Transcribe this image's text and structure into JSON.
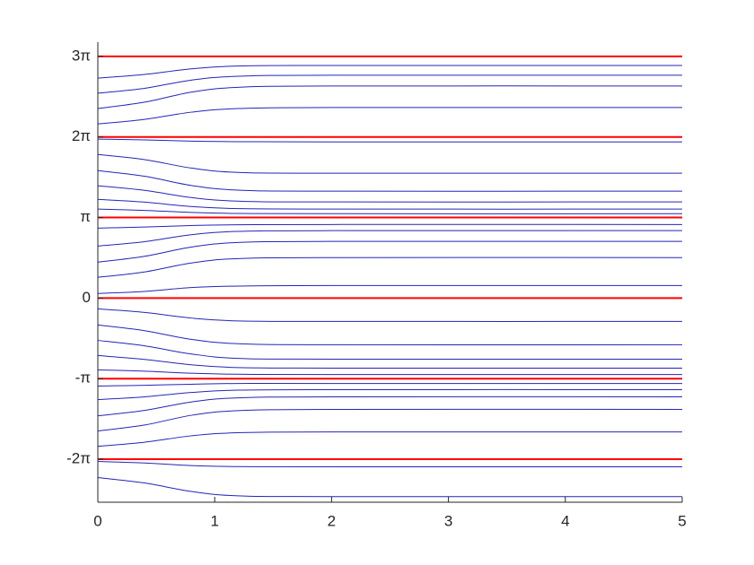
{
  "chart_data": {
    "type": "line",
    "x": [
      0,
      0.4,
      0.8,
      1.2,
      2,
      5
    ],
    "xlim": [
      0,
      5
    ],
    "xticks": [
      0,
      1,
      2,
      3,
      4,
      5
    ],
    "ylim": [
      -7.96,
      9.98
    ],
    "yticks": [
      {
        "value": -6.28318531,
        "label": "-2π"
      },
      {
        "value": -3.14159265,
        "label": "-π"
      },
      0,
      {
        "value": 3.14159265,
        "label": "π"
      },
      {
        "value": 6.28318531,
        "label": "2π"
      },
      {
        "value": 9.42477796,
        "label": "3π"
      }
    ],
    "series": [
      {
        "color": "#2424b8",
        "values": [
          8.58,
          8.72,
          8.94,
          9.05,
          9.07,
          9.07
        ]
      },
      {
        "color": "#2424b8",
        "values": [
          7.99,
          8.18,
          8.5,
          8.65,
          8.69,
          8.69
        ]
      },
      {
        "color": "#2424b8",
        "values": [
          7.39,
          7.64,
          8.03,
          8.22,
          8.27,
          8.27
        ]
      },
      {
        "color": "#2424b8",
        "values": [
          6.79,
          6.97,
          7.25,
          7.39,
          7.43,
          7.43
        ]
      },
      {
        "color": "#2424b8",
        "values": [
          6.2,
          6.17,
          6.12,
          6.1,
          6.09,
          6.09
        ]
      },
      {
        "color": "#2424b8",
        "values": [
          5.6,
          5.4,
          5.07,
          4.9,
          4.87,
          4.87
        ]
      },
      {
        "color": "#2424b8",
        "values": [
          4.97,
          4.75,
          4.39,
          4.21,
          4.17,
          4.17
        ]
      },
      {
        "color": "#2424b8",
        "values": [
          4.38,
          4.2,
          3.92,
          3.78,
          3.75,
          3.75
        ]
      },
      {
        "color": "#2424b8",
        "values": [
          3.85,
          3.74,
          3.57,
          3.49,
          3.47,
          3.47
        ]
      },
      {
        "color": "#2424b8",
        "values": [
          3.47,
          3.42,
          3.34,
          3.3,
          3.29,
          3.29
        ]
      },
      {
        "color": "#2424b8",
        "values": [
          2.73,
          2.77,
          2.83,
          2.86,
          2.87,
          2.87
        ]
      },
      {
        "color": "#2424b8",
        "values": [
          2.03,
          2.2,
          2.47,
          2.6,
          2.63,
          2.63
        ]
      },
      {
        "color": "#2424b8",
        "values": [
          1.4,
          1.63,
          1.99,
          2.17,
          2.21,
          2.21
        ]
      },
      {
        "color": "#2424b8",
        "values": [
          0.81,
          1.02,
          1.37,
          1.54,
          1.58,
          1.58
        ]
      },
      {
        "color": "#2424b8",
        "values": [
          0.18,
          0.26,
          0.41,
          0.47,
          0.49,
          0.49
        ]
      },
      {
        "color": "#2424b8",
        "values": [
          -0.42,
          -0.56,
          -0.78,
          -0.89,
          -0.91,
          -0.91
        ]
      },
      {
        "color": "#2424b8",
        "values": [
          -1.05,
          -1.27,
          -1.61,
          -1.78,
          -1.82,
          -1.82
        ]
      },
      {
        "color": "#2424b8",
        "values": [
          -1.65,
          -1.86,
          -2.18,
          -2.35,
          -2.38,
          -2.38
        ]
      },
      {
        "color": "#2424b8",
        "values": [
          -2.24,
          -2.39,
          -2.6,
          -2.71,
          -2.73,
          -2.73
        ]
      },
      {
        "color": "#2424b8",
        "values": [
          -2.8,
          -2.85,
          -2.93,
          -2.97,
          -2.98,
          -2.98
        ]
      },
      {
        "color": "#2424b8",
        "values": [
          -3.43,
          -3.4,
          -3.36,
          -3.33,
          -3.33,
          -3.33
        ]
      },
      {
        "color": "#2424b8",
        "values": [
          -3.96,
          -3.85,
          -3.68,
          -3.59,
          -3.57,
          -3.57
        ]
      },
      {
        "color": "#2424b8",
        "values": [
          -4.59,
          -4.38,
          -4.05,
          -3.89,
          -3.85,
          -3.85
        ]
      },
      {
        "color": "#2424b8",
        "values": [
          -5.18,
          -4.95,
          -4.57,
          -4.39,
          -4.34,
          -4.34
        ]
      },
      {
        "color": "#2424b8",
        "values": [
          -5.78,
          -5.62,
          -5.37,
          -5.25,
          -5.22,
          -5.22
        ]
      },
      {
        "color": "#2424b8",
        "values": [
          -6.37,
          -6.43,
          -6.53,
          -6.57,
          -6.58,
          -6.58
        ]
      },
      {
        "color": "#2424b8",
        "values": [
          -7.0,
          -7.21,
          -7.54,
          -7.71,
          -7.74,
          -7.74
        ]
      },
      {
        "color": "#ff0000",
        "values": [
          9.42477796,
          9.42477796,
          9.42477796,
          9.42477796,
          9.42477796,
          9.42477796
        ]
      },
      {
        "color": "#ff0000",
        "values": [
          6.28318531,
          6.28318531,
          6.28318531,
          6.28318531,
          6.28318531,
          6.28318531
        ]
      },
      {
        "color": "#ff0000",
        "values": [
          3.14159265,
          3.14159265,
          3.14159265,
          3.14159265,
          3.14159265,
          3.14159265
        ]
      },
      {
        "color": "#ff0000",
        "values": [
          0,
          0,
          0,
          0,
          0,
          0
        ]
      },
      {
        "color": "#ff0000",
        "values": [
          -3.14159265,
          -3.14159265,
          -3.14159265,
          -3.14159265,
          -3.14159265,
          -3.14159265
        ]
      },
      {
        "color": "#ff0000",
        "values": [
          -6.28318531,
          -6.28318531,
          -6.28318531,
          -6.28318531,
          -6.28318531,
          -6.28318531
        ]
      }
    ]
  }
}
